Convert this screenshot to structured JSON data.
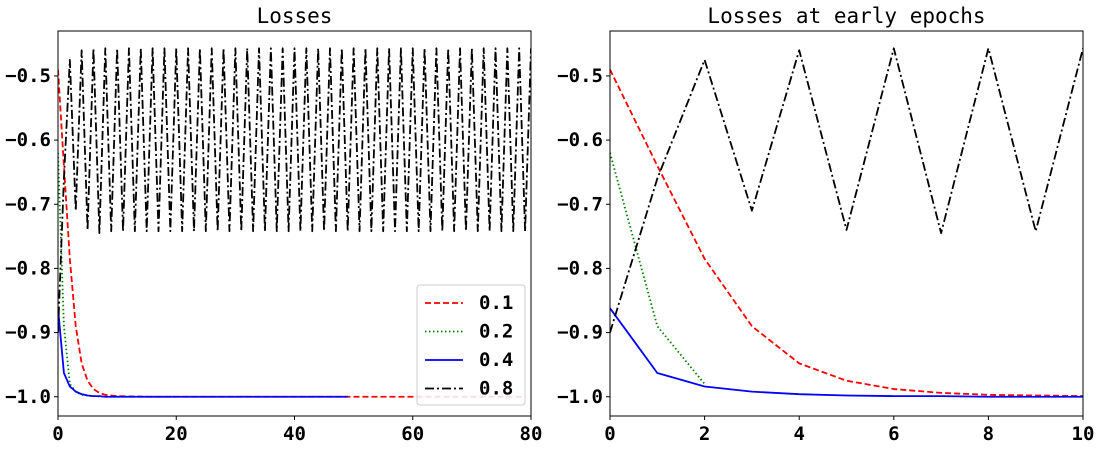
{
  "chart_data": [
    {
      "type": "line",
      "title": "Losses",
      "xlabel": "",
      "ylabel": "",
      "xlim": [
        0,
        80
      ],
      "ylim": [
        -1.03,
        -0.43
      ],
      "xticks": [
        0,
        20,
        40,
        60,
        80
      ],
      "yticks": [
        -1.0,
        -0.9,
        -0.8,
        -0.7,
        -0.6,
        -0.5
      ],
      "xtick_labels": [
        "0",
        "20",
        "40",
        "60",
        "80"
      ],
      "ytick_labels": [
        "−1.0",
        "−0.9",
        "−0.8",
        "−0.7",
        "−0.6",
        "−0.5"
      ],
      "grid": false,
      "legend_position": "lower-right",
      "series": [
        {
          "name": "0.1",
          "color": "#ff0000",
          "style": "dashed",
          "x": [
            0,
            1,
            2,
            3,
            4,
            5,
            6,
            7,
            8,
            9,
            10,
            15,
            20,
            30,
            40,
            50,
            60,
            70,
            79
          ],
          "y": [
            -0.49,
            -0.64,
            -0.785,
            -0.89,
            -0.948,
            -0.975,
            -0.988,
            -0.994,
            -0.997,
            -0.998,
            -0.999,
            -1.0,
            -1.0,
            -1.0,
            -1.0,
            -1.0,
            -1.0,
            -1.0,
            -1.0
          ]
        },
        {
          "name": "0.2",
          "color": "#008000",
          "style": "dotted",
          "x": [
            0,
            1,
            2,
            3,
            4,
            5,
            6,
            8,
            10,
            15,
            20
          ],
          "y": [
            -0.62,
            -0.89,
            -0.98,
            -0.992,
            -0.997,
            -0.998,
            -0.999,
            -1.0,
            -1.0,
            -1.0,
            -1.0
          ]
        },
        {
          "name": "0.4",
          "color": "#0000ff",
          "style": "solid",
          "x": [
            0,
            1,
            2,
            3,
            4,
            5,
            6,
            7,
            8,
            9,
            10,
            15,
            20,
            30,
            40,
            49
          ],
          "y": [
            -0.862,
            -0.963,
            -0.984,
            -0.992,
            -0.996,
            -0.998,
            -0.999,
            -0.999,
            -1.0,
            -1.0,
            -1.0,
            -1.0,
            -1.0,
            -1.0,
            -1.0,
            -1.0
          ]
        },
        {
          "name": "0.8",
          "color": "#000000",
          "style": "dashdot",
          "x": [
            0,
            1,
            2,
            3,
            4,
            5,
            6,
            7,
            8,
            9,
            10,
            11,
            12,
            13,
            14,
            15,
            16,
            17,
            18,
            19,
            20,
            21,
            22,
            23,
            24,
            25,
            26,
            27,
            28,
            29,
            30,
            31,
            32,
            33,
            34,
            35,
            36,
            37,
            38,
            39,
            40,
            41,
            42,
            43,
            44,
            45,
            46,
            47,
            48,
            49,
            50,
            51,
            52,
            53,
            54,
            55,
            56,
            57,
            58,
            59,
            60,
            61,
            62,
            63,
            64,
            65,
            66,
            67,
            68,
            69,
            70,
            71,
            72,
            73,
            74,
            75,
            76,
            77,
            78,
            79,
            80
          ],
          "y": [
            -0.9,
            -0.66,
            -0.475,
            -0.71,
            -0.46,
            -0.74,
            -0.457,
            -0.745,
            -0.457,
            -0.742,
            -0.457,
            -0.742,
            -0.457,
            -0.742,
            -0.457,
            -0.742,
            -0.457,
            -0.742,
            -0.457,
            -0.742,
            -0.457,
            -0.742,
            -0.457,
            -0.742,
            -0.457,
            -0.742,
            -0.457,
            -0.742,
            -0.457,
            -0.742,
            -0.457,
            -0.742,
            -0.457,
            -0.742,
            -0.457,
            -0.742,
            -0.457,
            -0.742,
            -0.457,
            -0.742,
            -0.457,
            -0.742,
            -0.457,
            -0.742,
            -0.457,
            -0.742,
            -0.457,
            -0.742,
            -0.457,
            -0.742,
            -0.457,
            -0.742,
            -0.457,
            -0.742,
            -0.457,
            -0.742,
            -0.457,
            -0.742,
            -0.457,
            -0.742,
            -0.457,
            -0.742,
            -0.457,
            -0.742,
            -0.457,
            -0.742,
            -0.457,
            -0.742,
            -0.457,
            -0.742,
            -0.457,
            -0.742,
            -0.457,
            -0.742,
            -0.457,
            -0.742,
            -0.457,
            -0.742,
            -0.457,
            -0.742,
            -0.457
          ]
        }
      ]
    },
    {
      "type": "line",
      "title": "Losses at early epochs",
      "xlabel": "",
      "ylabel": "",
      "xlim": [
        0,
        10
      ],
      "ylim": [
        -1.03,
        -0.43
      ],
      "xticks": [
        0,
        2,
        4,
        6,
        8,
        10
      ],
      "yticks": [
        -1.0,
        -0.9,
        -0.8,
        -0.7,
        -0.6,
        -0.5
      ],
      "xtick_labels": [
        "0",
        "2",
        "4",
        "6",
        "8",
        "10"
      ],
      "ytick_labels": [
        "−1.0",
        "−0.9",
        "−0.8",
        "−0.7",
        "−0.6",
        "−0.5"
      ],
      "grid": false,
      "series": [
        {
          "name": "0.1",
          "color": "#ff0000",
          "style": "dashed",
          "x": [
            0,
            1,
            2,
            3,
            4,
            5,
            6,
            7,
            8,
            9,
            10
          ],
          "y": [
            -0.49,
            -0.64,
            -0.785,
            -0.89,
            -0.948,
            -0.975,
            -0.988,
            -0.994,
            -0.997,
            -0.998,
            -0.999
          ]
        },
        {
          "name": "0.2",
          "color": "#008000",
          "style": "dotted",
          "x": [
            0,
            1,
            2
          ],
          "y": [
            -0.62,
            -0.89,
            -0.98
          ]
        },
        {
          "name": "0.4",
          "color": "#0000ff",
          "style": "solid",
          "x": [
            0,
            1,
            2,
            3,
            4,
            5,
            6,
            7,
            8,
            9,
            10
          ],
          "y": [
            -0.862,
            -0.963,
            -0.984,
            -0.992,
            -0.996,
            -0.998,
            -0.999,
            -0.999,
            -1.0,
            -1.0,
            -1.0
          ]
        },
        {
          "name": "0.8",
          "color": "#000000",
          "style": "dashdot",
          "x": [
            0,
            1,
            2,
            3,
            4,
            5,
            6,
            7,
            8,
            9,
            10
          ],
          "y": [
            -0.9,
            -0.66,
            -0.475,
            -0.71,
            -0.46,
            -0.74,
            -0.457,
            -0.745,
            -0.457,
            -0.742,
            -0.457
          ]
        }
      ]
    }
  ]
}
